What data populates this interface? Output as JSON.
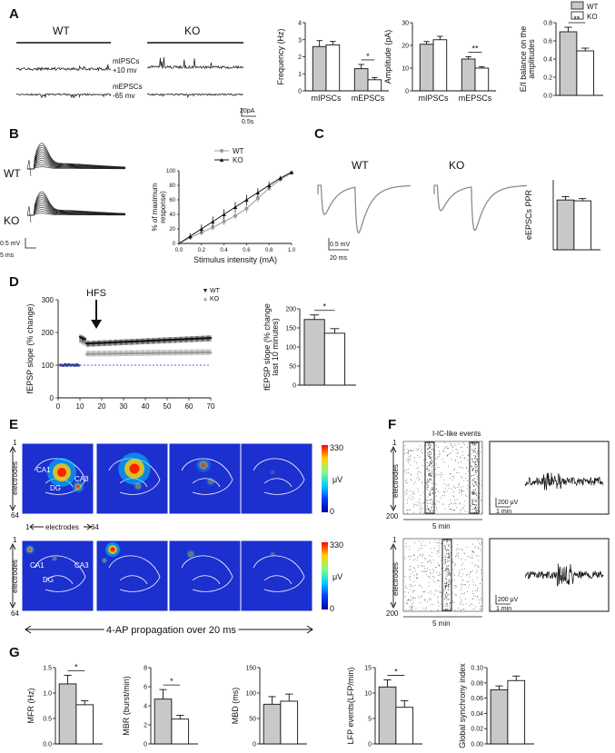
{
  "colors": {
    "wt": "#c8c8c8",
    "ko": "#ffffff",
    "trace": "#222222",
    "gray_trace": "#8c8c8c",
    "heat_bg": "#1c2fcf",
    "dashed": "#2233cc"
  },
  "panels": {
    "A": "A",
    "B": "B",
    "C": "C",
    "D": "D",
    "E": "E",
    "F": "F",
    "G": "G"
  },
  "legend": {
    "wt": "WT",
    "ko": "KO"
  },
  "panelA": {
    "wt_label": "WT",
    "ko_label": "KO",
    "mipsc_label": "mIPSCs",
    "mipsc_v": "+10 mv",
    "mepsc_label": "mEPSCs",
    "mepsc_v": "-65 mv",
    "scale_y": "20pA",
    "scale_x": "0.5s"
  },
  "panelB": {
    "wt_label": "WT",
    "ko_label": "KO",
    "scale_y": "0.5 mV",
    "scale_x": "5 ms"
  },
  "panelC": {
    "wt_label": "WT",
    "ko_label": "KO",
    "scale_y": "0.5 mV",
    "scale_x": "20 ms"
  },
  "panelD": {
    "hfs": "HFS"
  },
  "panelE": {
    "cb_max": "330",
    "cb_min": "0",
    "cb_unit": "μV",
    "ca1": "CA1",
    "ca3": "CA3",
    "dg": "DG",
    "electrodes": "electrodes",
    "e1": "1",
    "e64": "64",
    "prop": "4-AP propagation  over 20 ms"
  },
  "panelF": {
    "title": "I-IC-like events",
    "electrodes": "electrodes",
    "e1": "1",
    "e200": "200",
    "time": "5 min",
    "scale_y": "200 μV",
    "scale_x": "1 min"
  },
  "chart_data": [
    {
      "id": "A1",
      "type": "bar",
      "categories": [
        "mIPSCs",
        "mEPSCs"
      ],
      "ylabel": "Frequency (Hz)",
      "ylim": [
        0,
        4
      ],
      "yticks": [
        "0",
        "1",
        "2",
        "3",
        "4"
      ],
      "series": [
        {
          "name": "WT",
          "values": [
            2.6,
            1.3
          ],
          "err": [
            0.35,
            0.25
          ]
        },
        {
          "name": "KO",
          "values": [
            2.7,
            0.65
          ],
          "err": [
            0.2,
            0.12
          ]
        }
      ],
      "sig": [
        {
          "cat": 1,
          "label": "*"
        }
      ]
    },
    {
      "id": "A2",
      "type": "bar",
      "categories": [
        "mIPSCs",
        "mEPSCs"
      ],
      "ylabel": "Amplitude (pA)",
      "ylim": [
        0,
        30
      ],
      "yticks": [
        "0",
        "10",
        "20",
        "30"
      ],
      "series": [
        {
          "name": "WT",
          "values": [
            20.5,
            14
          ],
          "err": [
            1.2,
            1.0
          ]
        },
        {
          "name": "KO",
          "values": [
            22.5,
            10
          ],
          "err": [
            1.5,
            0.6
          ]
        }
      ],
      "sig": [
        {
          "cat": 1,
          "label": "**"
        }
      ]
    },
    {
      "id": "A3",
      "type": "bar",
      "categories": [
        ""
      ],
      "ylabel": "E/I balance on the amplitudes",
      "ylim": [
        0,
        0.8
      ],
      "yticks": [
        "0.0",
        "0.2",
        "0.4",
        "0.6",
        "0.8"
      ],
      "series": [
        {
          "name": "WT",
          "values": [
            0.7
          ],
          "err": [
            0.05
          ]
        },
        {
          "name": "KO",
          "values": [
            0.49
          ],
          "err": [
            0.03
          ]
        }
      ],
      "sig": [
        {
          "cat": 0,
          "label": "**"
        }
      ]
    },
    {
      "id": "B",
      "type": "line",
      "xlabel": "Stimulus intensity (mA)",
      "ylabel": "% of maximum response",
      "xlim": [
        0,
        1
      ],
      "ylim": [
        0,
        100
      ],
      "xticks": [
        "0.0",
        "0.2",
        "0.4",
        "0.6",
        "0.8",
        "1.0"
      ],
      "yticks": [
        "0",
        "20",
        "40",
        "60",
        "80",
        "100"
      ],
      "x": [
        0.1,
        0.2,
        0.3,
        0.4,
        0.5,
        0.6,
        0.7,
        0.8,
        0.9,
        1.0
      ],
      "series": [
        {
          "name": "WT",
          "values": [
            8,
            15,
            22,
            30,
            38,
            48,
            62,
            76,
            88,
            97
          ],
          "err": [
            3,
            4,
            4,
            5,
            5,
            6,
            5,
            4,
            3,
            2
          ]
        },
        {
          "name": "KO",
          "values": [
            10,
            20,
            30,
            40,
            50,
            60,
            70,
            80,
            90,
            98
          ],
          "err": [
            4,
            6,
            7,
            7,
            7,
            7,
            6,
            5,
            3,
            2
          ]
        }
      ]
    },
    {
      "id": "C",
      "type": "bar",
      "categories": [
        ""
      ],
      "ylabel": "eEPSCs PPR",
      "ylim": [
        0,
        2.5
      ],
      "yticks": [],
      "series": [
        {
          "name": "WT",
          "values": [
            1.78
          ],
          "err": [
            0.12
          ]
        },
        {
          "name": "KO",
          "values": [
            1.75
          ],
          "err": [
            0.08
          ]
        }
      ],
      "sig": []
    },
    {
      "id": "D1",
      "type": "scatter",
      "xlabel": "",
      "ylabel": "fEPSP slope (% change)",
      "xlim": [
        0,
        70
      ],
      "ylim": [
        0,
        300
      ],
      "xticks": [
        "0",
        "10",
        "20",
        "30",
        "40",
        "50",
        "60",
        "70"
      ],
      "yticks": [
        "0",
        "100",
        "200",
        "300"
      ],
      "baseline": 100,
      "series": [
        {
          "name": "WT",
          "baseline_end": 10,
          "peak": 185,
          "plateau_start": 165,
          "plateau_end": 182
        },
        {
          "name": "KO",
          "baseline_end": 10,
          "peak": 175,
          "plateau_start": 135,
          "plateau_end": 140
        }
      ]
    },
    {
      "id": "D2",
      "type": "bar",
      "categories": [
        ""
      ],
      "ylabel": "fEPSP slope (% change last 10 minutes)",
      "ylim": [
        0,
        200
      ],
      "yticks": [
        "0",
        "50",
        "100",
        "150",
        "200"
      ],
      "series": [
        {
          "name": "WT",
          "values": [
            172
          ],
          "err": [
            12
          ]
        },
        {
          "name": "KO",
          "values": [
            136
          ],
          "err": [
            12
          ]
        }
      ],
      "sig": [
        {
          "cat": 0,
          "label": "*"
        }
      ]
    },
    {
      "id": "G1",
      "type": "bar",
      "categories": [
        ""
      ],
      "ylabel": "MFR (Hz)",
      "ylim": [
        0,
        1.5
      ],
      "yticks": [
        "0.0",
        "0.5",
        "1.0",
        "1.5"
      ],
      "series": [
        {
          "name": "WT",
          "values": [
            1.18
          ],
          "err": [
            0.17
          ]
        },
        {
          "name": "KO",
          "values": [
            0.77
          ],
          "err": [
            0.08
          ]
        }
      ],
      "sig": [
        {
          "cat": 0,
          "label": "*"
        }
      ]
    },
    {
      "id": "G2",
      "type": "bar",
      "categories": [
        ""
      ],
      "ylabel": "MBR (burst/min)",
      "ylim": [
        0,
        8
      ],
      "yticks": [
        "0",
        "2",
        "4",
        "6",
        "8"
      ],
      "series": [
        {
          "name": "WT",
          "values": [
            4.7
          ],
          "err": [
            1.0
          ]
        },
        {
          "name": "KO",
          "values": [
            2.6
          ],
          "err": [
            0.4
          ]
        }
      ],
      "sig": [
        {
          "cat": 0,
          "label": "*"
        }
      ]
    },
    {
      "id": "G3",
      "type": "bar",
      "categories": [
        ""
      ],
      "ylabel": "MBD (ms)",
      "ylim": [
        0,
        150
      ],
      "yticks": [
        "0",
        "50",
        "100",
        "150"
      ],
      "series": [
        {
          "name": "WT",
          "values": [
            78
          ],
          "err": [
            15
          ]
        },
        {
          "name": "KO",
          "values": [
            84
          ],
          "err": [
            14
          ]
        }
      ],
      "sig": []
    },
    {
      "id": "G4",
      "type": "bar",
      "categories": [
        ""
      ],
      "ylabel": "LFP events(LFP/min)",
      "ylim": [
        0,
        15
      ],
      "yticks": [
        "0",
        "5",
        "10",
        "15"
      ],
      "series": [
        {
          "name": "WT",
          "values": [
            11.2
          ],
          "err": [
            1.4
          ]
        },
        {
          "name": "KO",
          "values": [
            7.2
          ],
          "err": [
            1.3
          ]
        }
      ],
      "sig": [
        {
          "cat": 0,
          "label": "*"
        }
      ]
    },
    {
      "id": "G5",
      "type": "bar",
      "categories": [
        ""
      ],
      "ylabel": "Global synchrony index",
      "ylim": [
        0,
        0.1
      ],
      "yticks": [
        "0.00",
        "0.02",
        "0.04",
        "0.06",
        "0.08",
        "0.10"
      ],
      "series": [
        {
          "name": "WT",
          "values": [
            0.071
          ],
          "err": [
            0.005
          ]
        },
        {
          "name": "KO",
          "values": [
            0.083
          ],
          "err": [
            0.006
          ]
        }
      ],
      "sig": []
    }
  ]
}
